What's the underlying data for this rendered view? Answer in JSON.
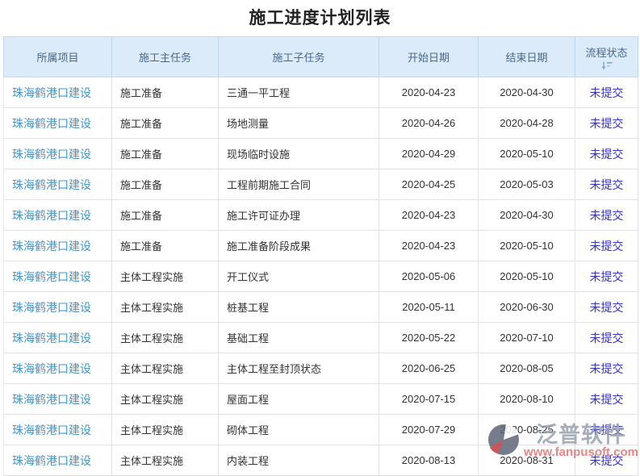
{
  "page_title": "施工进度计划列表",
  "table": {
    "columns": [
      {
        "label": "所属项目"
      },
      {
        "label": "施工主任务"
      },
      {
        "label": "施工子任务"
      },
      {
        "label": "开始日期"
      },
      {
        "label": "结束日期"
      },
      {
        "label": "流程状态"
      }
    ],
    "rows": [
      {
        "project": "珠海鹤港口建设",
        "main_task": "施工准备",
        "sub_task": "三通一平工程",
        "start_date": "2020-04-23",
        "end_date": "2020-04-30",
        "status": "未提交"
      },
      {
        "project": "珠海鹤港口建设",
        "main_task": "施工准备",
        "sub_task": "场地测量",
        "start_date": "2020-04-26",
        "end_date": "2020-04-28",
        "status": "未提交"
      },
      {
        "project": "珠海鹤港口建设",
        "main_task": "施工准备",
        "sub_task": "现场临时设施",
        "start_date": "2020-04-29",
        "end_date": "2020-05-10",
        "status": "未提交"
      },
      {
        "project": "珠海鹤港口建设",
        "main_task": "施工准备",
        "sub_task": "工程前期施工合同",
        "start_date": "2020-04-25",
        "end_date": "2020-05-03",
        "status": "未提交"
      },
      {
        "project": "珠海鹤港口建设",
        "main_task": "施工准备",
        "sub_task": "施工许可证办理",
        "start_date": "2020-04-23",
        "end_date": "2020-04-30",
        "status": "未提交"
      },
      {
        "project": "珠海鹤港口建设",
        "main_task": "施工准备",
        "sub_task": "施工准备阶段成果",
        "start_date": "2020-04-23",
        "end_date": "2020-05-10",
        "status": "未提交"
      },
      {
        "project": "珠海鹤港口建设",
        "main_task": "主体工程实施",
        "sub_task": "开工仪式",
        "start_date": "2020-05-06",
        "end_date": "2020-05-10",
        "status": "未提交"
      },
      {
        "project": "珠海鹤港口建设",
        "main_task": "主体工程实施",
        "sub_task": "桩基工程",
        "start_date": "2020-05-11",
        "end_date": "2020-06-30",
        "status": "未提交"
      },
      {
        "project": "珠海鹤港口建设",
        "main_task": "主体工程实施",
        "sub_task": "基础工程",
        "start_date": "2020-05-22",
        "end_date": "2020-07-10",
        "status": "未提交"
      },
      {
        "project": "珠海鹤港口建设",
        "main_task": "主体工程实施",
        "sub_task": "主体工程至封顶状态",
        "start_date": "2020-06-25",
        "end_date": "2020-08-05",
        "status": "未提交"
      },
      {
        "project": "珠海鹤港口建设",
        "main_task": "主体工程实施",
        "sub_task": "屋面工程",
        "start_date": "2020-07-15",
        "end_date": "2020-08-10",
        "status": "未提交"
      },
      {
        "project": "珠海鹤港口建设",
        "main_task": "主体工程实施",
        "sub_task": "砌体工程",
        "start_date": "2020-07-29",
        "end_date": "2020-08-25",
        "status": "未提交"
      },
      {
        "project": "珠海鹤港口建设",
        "main_task": "主体工程实施",
        "sub_task": "内装工程",
        "start_date": "2020-08-13",
        "end_date": "2020-08-31",
        "status": "未提交"
      }
    ]
  },
  "icons": {
    "sort": "sort-descending-icon"
  },
  "watermark": {
    "brand": "泛普软件",
    "url": "www.fanpusoft.com"
  },
  "colors": {
    "header_bg": "#dcebf9",
    "header_text": "#47688c",
    "project_link": "#4196d3",
    "status_link": "#3634cb",
    "body_border": "#e3e3e3",
    "header_border": "#c6dcee",
    "watermark_brand": "#9aa2b0",
    "watermark_url": "#e57070"
  }
}
